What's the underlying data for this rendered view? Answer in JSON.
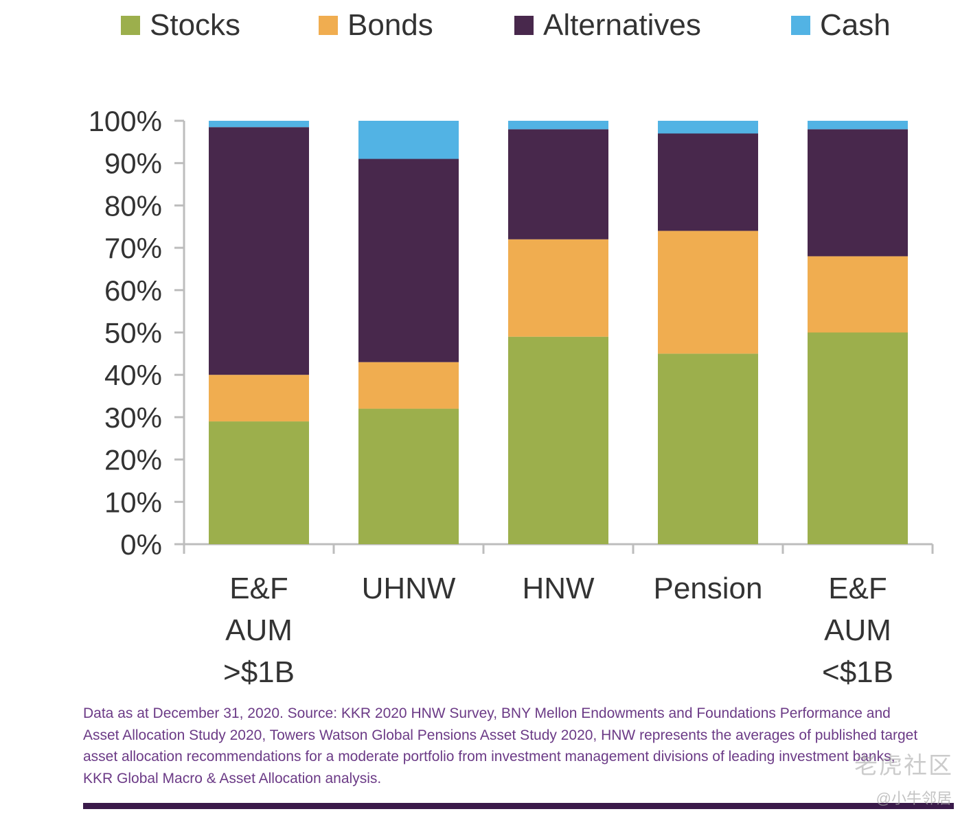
{
  "chart_data": {
    "type": "bar",
    "stacked": true,
    "categories": [
      [
        "E&F",
        "AUM",
        ">$1B"
      ],
      [
        "UHNW"
      ],
      [
        "HNW"
      ],
      [
        "Pension"
      ],
      [
        "E&F",
        "AUM",
        "<$1B"
      ]
    ],
    "series": [
      {
        "name": "Stocks",
        "color": "#9caf4c",
        "values": [
          29,
          32,
          49,
          45,
          50
        ]
      },
      {
        "name": "Bonds",
        "color": "#f0ad50",
        "values": [
          11,
          11,
          23,
          29,
          18
        ]
      },
      {
        "name": "Alternatives",
        "color": "#48284c",
        "values": [
          58.5,
          48,
          26,
          23,
          30
        ]
      },
      {
        "name": "Cash",
        "color": "#52b3e4",
        "values": [
          1.5,
          9,
          2,
          3,
          2
        ]
      }
    ],
    "ylim": [
      0,
      100
    ],
    "yticks": [
      "0%",
      "10%",
      "20%",
      "30%",
      "40%",
      "50%",
      "60%",
      "70%",
      "80%",
      "90%",
      "100%"
    ],
    "legend_position": "top"
  },
  "source_note": "Data as at December 31, 2020. Source: KKR 2020 HNW Survey, BNY Mellon Endowments and Foundations Performance and Asset Allocation Study 2020, Towers Watson Global Pensions Asset Study 2020, HNW represents the averages of published target asset allocation recommendations for a moderate portfolio from investment management divisions of leading investment banks, KKR Global Macro & Asset Allocation analysis.",
  "watermark": "老虎社区",
  "watermark_sub": "@小牛邻居"
}
